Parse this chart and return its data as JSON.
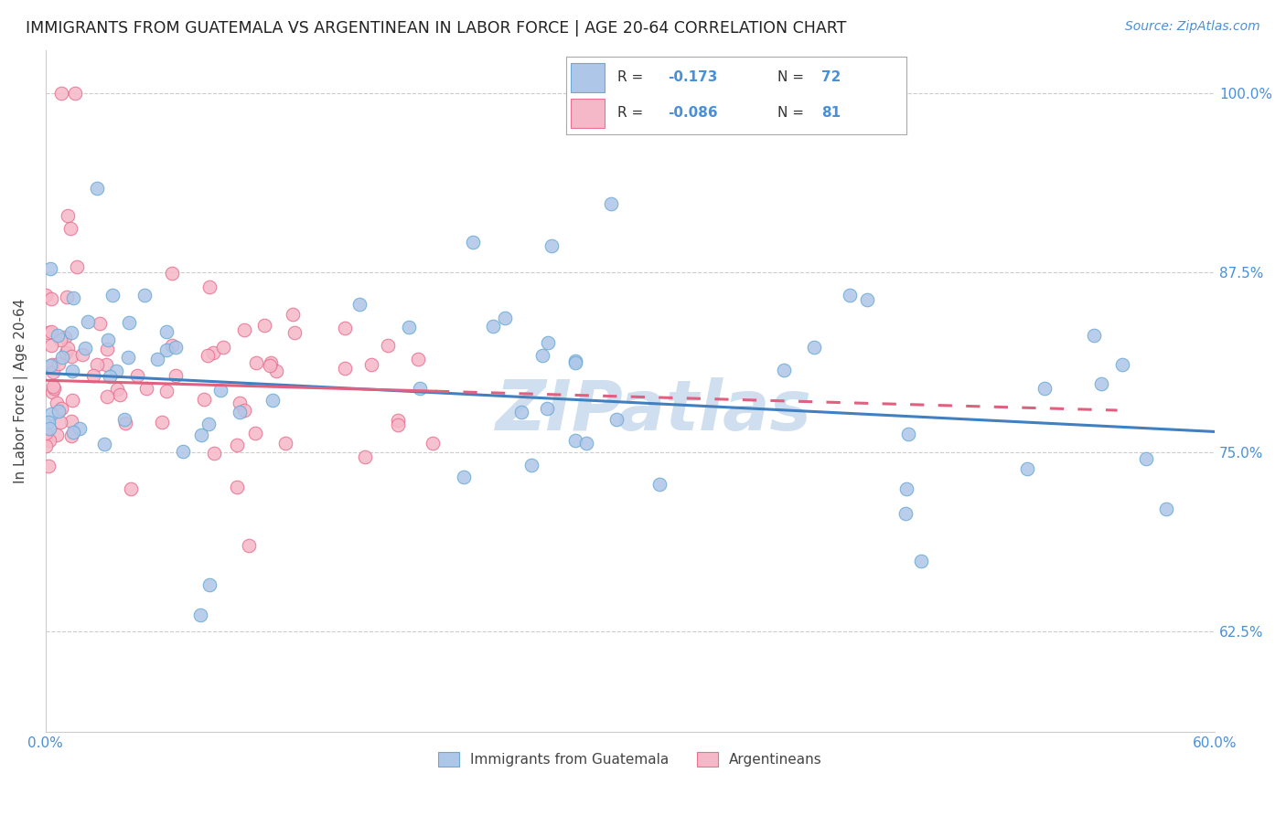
{
  "title": "IMMIGRANTS FROM GUATEMALA VS ARGENTINEAN IN LABOR FORCE | AGE 20-64 CORRELATION CHART",
  "source": "Source: ZipAtlas.com",
  "ylabel": "In Labor Force | Age 20-64",
  "xlim": [
    0.0,
    0.6
  ],
  "ylim": [
    0.555,
    1.03
  ],
  "yticks": [
    0.625,
    0.75,
    0.875,
    1.0
  ],
  "yticklabels": [
    "62.5%",
    "75.0%",
    "87.5%",
    "100.0%"
  ],
  "blue_fill": "#aec6e8",
  "blue_edge": "#6aaad4",
  "pink_fill": "#f5b8c8",
  "pink_edge": "#e87090",
  "blue_line_color": "#4080c0",
  "pink_line_color": "#e06080",
  "tick_color": "#4a90d9",
  "label_color": "#444444",
  "grid_color": "#cccccc",
  "watermark_color": "#d0dff0",
  "R_blue": -0.173,
  "N_blue": 72,
  "R_pink": -0.086,
  "N_pink": 81,
  "blue_intercept": 0.805,
  "blue_slope": -0.068,
  "pink_intercept": 0.8,
  "pink_slope": -0.038
}
